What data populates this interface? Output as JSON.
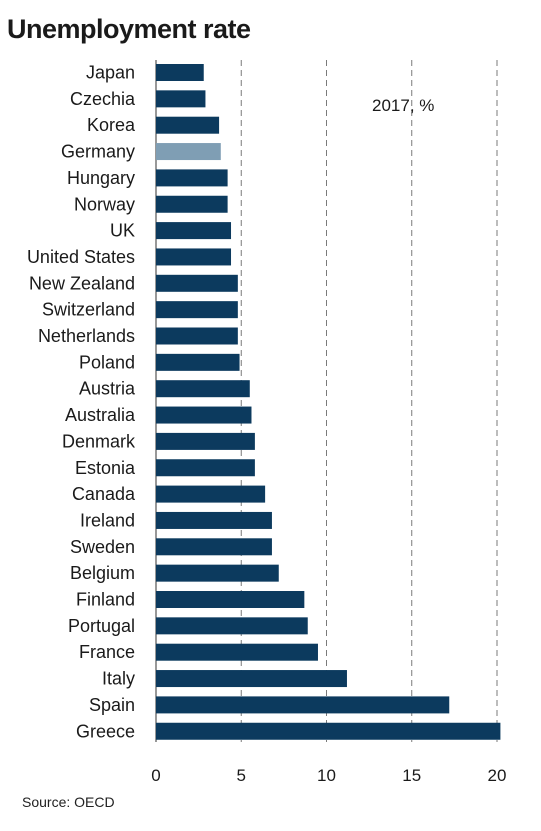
{
  "chart_data": {
    "type": "bar",
    "orientation": "horizontal",
    "title": "Unemployment rate",
    "annotation": "2017, %",
    "source": "Source: OECD",
    "categories": [
      "Japan",
      "Czechia",
      "Korea",
      "Germany",
      "Hungary",
      "Norway",
      "UK",
      "United States",
      "New Zealand",
      "Switzerland",
      "Netherlands",
      "Poland",
      "Austria",
      "Australia",
      "Denmark",
      "Estonia",
      "Canada",
      "Ireland",
      "Sweden",
      "Belgium",
      "Finland",
      "Portugal",
      "France",
      "Italy",
      "Spain",
      "Greece"
    ],
    "values": [
      2.8,
      2.9,
      3.7,
      3.8,
      4.2,
      4.2,
      4.4,
      4.4,
      4.8,
      4.8,
      4.8,
      4.9,
      5.5,
      5.6,
      5.8,
      5.8,
      6.4,
      6.8,
      6.8,
      7.2,
      8.7,
      8.9,
      9.5,
      11.2,
      17.2,
      20.2
    ],
    "highlight": "Germany",
    "colors": {
      "bar": "#0c3a5e",
      "highlight": "#7f9eb4",
      "grid": "#7a7a7a"
    },
    "xlim": [
      0,
      20
    ],
    "xticks": [
      0,
      5,
      10,
      15,
      20
    ],
    "grid": "vertical-dashed",
    "xlabel": "",
    "ylabel": ""
  }
}
